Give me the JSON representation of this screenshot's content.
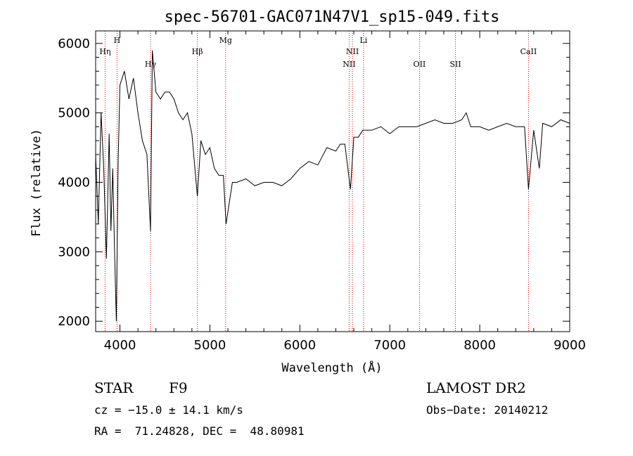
{
  "chart_data": {
    "type": "line",
    "title": "spec-56701-GAC071N47V1_sp15-049.fits",
    "xlabel": "Wavelength (Å)",
    "ylabel": "Flux (relative)",
    "xlim": [
      3730,
      9000
    ],
    "ylim": [
      1850,
      6180
    ],
    "x_ticks": [
      4000,
      5000,
      6000,
      7000,
      8000,
      9000
    ],
    "y_ticks": [
      2000,
      3000,
      4000,
      5000,
      6000
    ],
    "x_tick_labels": [
      "4000",
      "5000",
      "6000",
      "7000",
      "8000",
      "9000"
    ],
    "y_tick_labels": [
      "2000",
      "3000",
      "4000",
      "5000",
      "6000"
    ],
    "series": [
      {
        "line_color": "#000000",
        "x": [
          3730,
          3760,
          3790,
          3820,
          3850,
          3880,
          3900,
          3920,
          3940,
          3960,
          3980,
          4000,
          4050,
          4100,
          4150,
          4200,
          4250,
          4300,
          4340,
          4360,
          4400,
          4450,
          4500,
          4550,
          4600,
          4650,
          4700,
          4750,
          4800,
          4861,
          4900,
          4950,
          5000,
          5050,
          5100,
          5150,
          5180,
          5250,
          5300,
          5400,
          5500,
          5600,
          5700,
          5800,
          5900,
          6000,
          6100,
          6200,
          6300,
          6400,
          6450,
          6500,
          6563,
          6600,
          6650,
          6700,
          6800,
          6900,
          7000,
          7100,
          7200,
          7300,
          7400,
          7500,
          7600,
          7700,
          7800,
          7850,
          7900,
          8000,
          8100,
          8200,
          8300,
          8400,
          8498,
          8542,
          8600,
          8662,
          8700,
          8800,
          8900,
          9000
        ],
        "y": [
          4400,
          3400,
          5000,
          4200,
          2900,
          4700,
          3300,
          4200,
          3000,
          2000,
          4300,
          5400,
          5600,
          5200,
          5500,
          5000,
          4600,
          4400,
          3300,
          5900,
          5300,
          5200,
          5300,
          5300,
          5200,
          5000,
          4900,
          5000,
          4700,
          3800,
          4600,
          4400,
          4500,
          4200,
          4100,
          4100,
          3400,
          4000,
          4000,
          4050,
          3950,
          4000,
          4000,
          3950,
          4050,
          4200,
          4300,
          4250,
          4500,
          4450,
          4550,
          4550,
          3900,
          4650,
          4650,
          4750,
          4750,
          4800,
          4700,
          4800,
          4800,
          4800,
          4850,
          4900,
          4850,
          4850,
          4900,
          5000,
          4800,
          4800,
          4750,
          4800,
          4850,
          4800,
          4800,
          3900,
          4750,
          4200,
          4850,
          4800,
          4900,
          4850
        ]
      }
    ],
    "line_markers": [
      {
        "label": "Hη",
        "wavelength": 3835,
        "row": 2
      },
      {
        "label": "H",
        "wavelength": 3968,
        "row": 1
      },
      {
        "label": "Hγ",
        "wavelength": 4340,
        "row": 3
      },
      {
        "label": "Hβ",
        "wavelength": 4861,
        "row": 2
      },
      {
        "label": "Mg",
        "wavelength": 5175,
        "row": 1
      },
      {
        "label": "NII",
        "wavelength": 6548,
        "row": 3
      },
      {
        "label": "NII",
        "wavelength": 6584,
        "row": 2
      },
      {
        "label": "Li",
        "wavelength": 6708,
        "row": 1
      },
      {
        "label": "OII",
        "wavelength": 7330,
        "row": 3
      },
      {
        "label": "SII",
        "wavelength": 7730,
        "row": 3
      },
      {
        "label": "CaII",
        "wavelength": 8542,
        "row": 2
      }
    ],
    "marker_color": "#cc0000",
    "grid": false,
    "legend": "none"
  },
  "info": {
    "object_class": "STAR",
    "subclass": "F9",
    "survey": "LAMOST DR2",
    "redshift": "cz = −15.0 ± 14.1 km/s",
    "obs_date": "Obs−Date: 20140212",
    "coords": "RA =  71.24828, DEC =  48.80981"
  }
}
